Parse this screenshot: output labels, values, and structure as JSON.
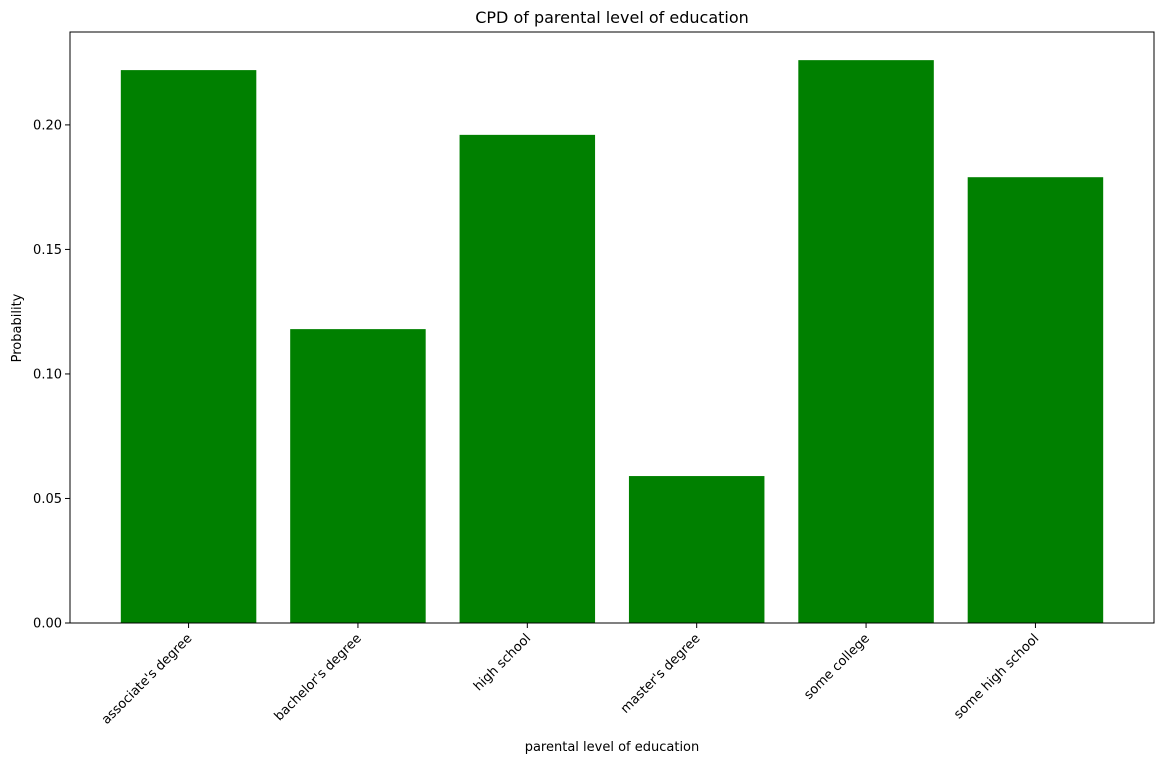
{
  "chart_data": {
    "type": "bar",
    "title": "CPD of parental level of education",
    "xlabel": "parental level of education",
    "ylabel": "Probability",
    "categories": [
      "associate's degree",
      "bachelor's degree",
      "high school",
      "master's degree",
      "some college",
      "some high school"
    ],
    "values": [
      0.222,
      0.118,
      0.196,
      0.059,
      0.226,
      0.179
    ],
    "ylim": [
      0,
      0.2373
    ],
    "yticks": [
      "0.00",
      "0.05",
      "0.10",
      "0.15",
      "0.20"
    ],
    "grid": false,
    "colors": {
      "bar": "#008000",
      "axis": "#000000"
    }
  }
}
